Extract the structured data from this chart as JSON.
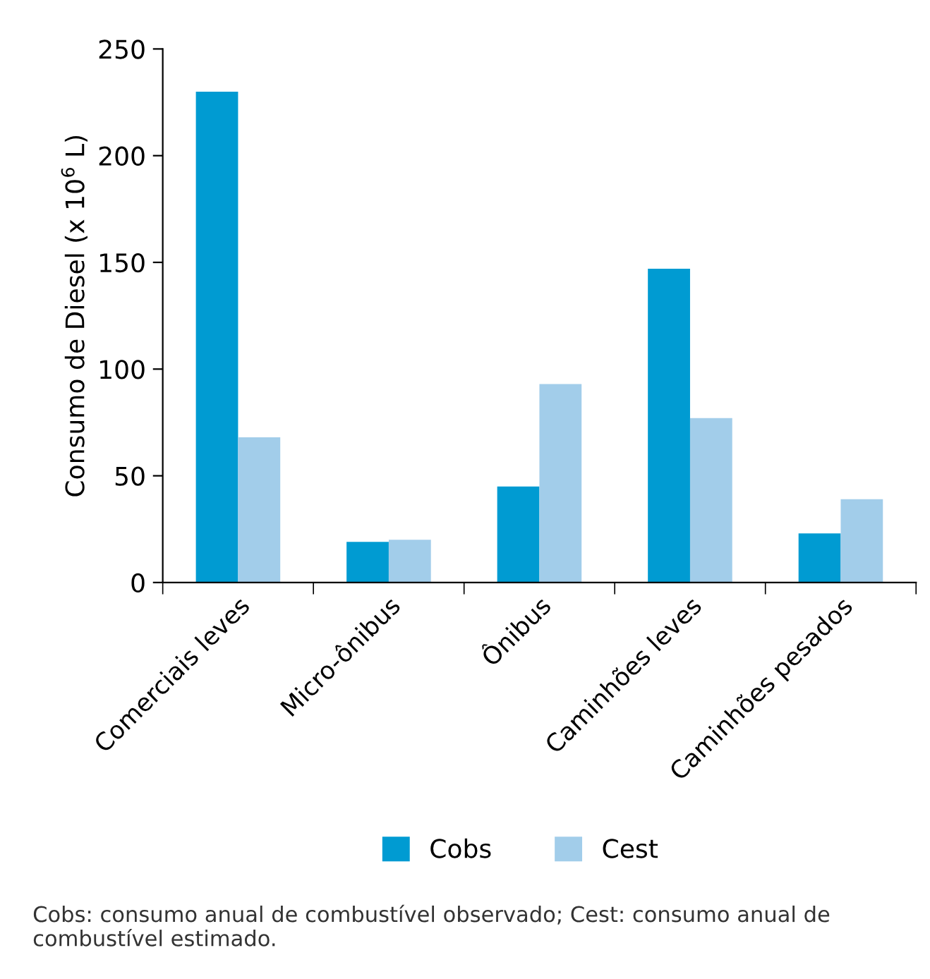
{
  "chart_data": {
    "type": "bar",
    "ylabel": "Consumo de Diesel (x 10$^{6}$ L)",
    "categories": [
      "Comerciais leves",
      "Micro-ônibus",
      "Ônibus",
      "Caminhões leves",
      "Caminhões pesados"
    ],
    "series": [
      {
        "name": "Cobs",
        "color": "#009bd2",
        "values": [
          230,
          19,
          45,
          147,
          23
        ]
      },
      {
        "name": "Cest",
        "color": "#a2cdea",
        "values": [
          68,
          20,
          93,
          77,
          39
        ]
      }
    ],
    "ylim": [
      0,
      250
    ],
    "yticks": [
      0,
      50,
      100,
      150,
      200,
      250
    ],
    "grid": false,
    "legend": "bottom",
    "annotations": [
      "Cobs: consumo anual de combustível observado; Cest: consumo anual de combustível estimado."
    ]
  }
}
